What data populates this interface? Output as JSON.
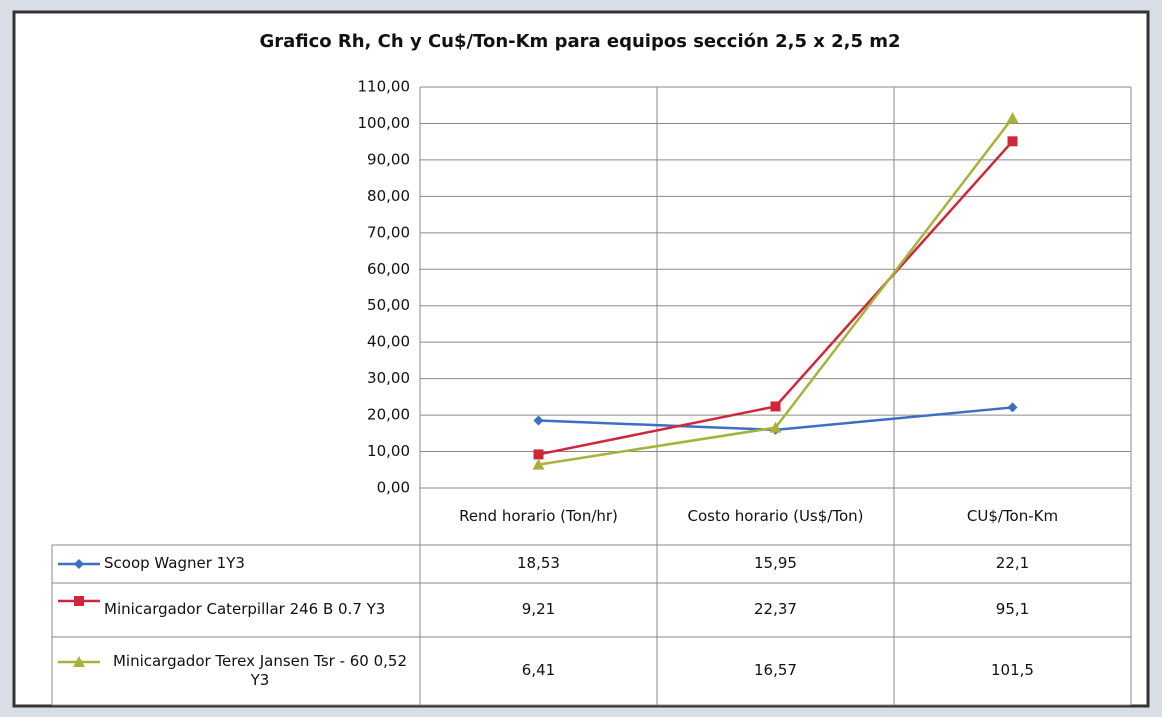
{
  "chart_data": {
    "type": "line",
    "title": "Grafico Rh, Ch y Cu$/Ton-Km para equipos sección 2,5 x 2,5 m2",
    "categories": [
      "Rend horario (Ton/hr)",
      "Costo horario (Us$/Ton)",
      "CU$/Ton-Km"
    ],
    "series": [
      {
        "name": "Scoop Wagner 1Y3",
        "color": "#3b6fc4",
        "marker": "diamond",
        "values": [
          18.53,
          15.95,
          22.1
        ],
        "value_labels": [
          "18,53",
          "15,95",
          "22,1"
        ]
      },
      {
        "name": "Minicargador Caterpillar 246 B 0.7 Y3",
        "color": "#d0263a",
        "marker": "square",
        "values": [
          9.21,
          22.37,
          95.1
        ],
        "value_labels": [
          "9,21",
          "22,37",
          "95,1"
        ]
      },
      {
        "name": "Minicargador Terex Jansen Tsr - 60 0,52 Y3",
        "color": "#a8b23a",
        "marker": "triangle",
        "values": [
          6.41,
          16.57,
          101.5
        ],
        "value_labels": [
          "6,41",
          "16,57",
          "101,5"
        ]
      }
    ],
    "ylim": [
      0,
      110
    ],
    "yticks": [
      {
        "value": 0,
        "label": "0,00"
      },
      {
        "value": 10,
        "label": "10,00"
      },
      {
        "value": 20,
        "label": "20,00"
      },
      {
        "value": 30,
        "label": "30,00"
      },
      {
        "value": 40,
        "label": "40,00"
      },
      {
        "value": 50,
        "label": "50,00"
      },
      {
        "value": 60,
        "label": "60,00"
      },
      {
        "value": 70,
        "label": "70,00"
      },
      {
        "value": 80,
        "label": "80,00"
      },
      {
        "value": 90,
        "label": "90,00"
      },
      {
        "value": 100,
        "label": "100,00"
      },
      {
        "value": 110,
        "label": "110,00"
      }
    ],
    "grid": true,
    "data_table": true
  }
}
